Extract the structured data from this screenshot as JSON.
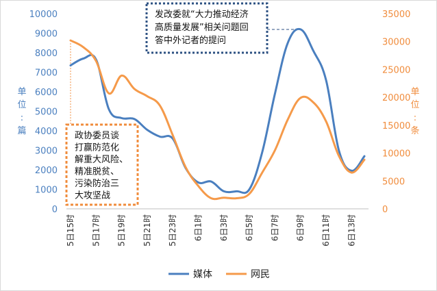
{
  "chart_data": {
    "type": "line",
    "x": [
      "5日15时",
      "5日16时",
      "5日17时",
      "5日18时",
      "5日19时",
      "5日20时",
      "5日21时",
      "5日22时",
      "5日23时",
      "6日0时",
      "6日1时",
      "6日2时",
      "6日3时",
      "6日4时",
      "6日5时",
      "6日6时",
      "6日7时",
      "6日8时",
      "6日9时",
      "6日10时",
      "6日11时",
      "6日12时",
      "6日13时",
      "6日14时"
    ],
    "x_tick_labels": [
      "5日15时",
      "5日17时",
      "5日19时",
      "5日21时",
      "5日23时",
      "6日1时",
      "6日3时",
      "6日5时",
      "6日7时",
      "6日9时",
      "6日11时",
      "6日13时"
    ],
    "series": [
      {
        "name": "媒体",
        "axis": "left",
        "color": "#4a7fbf",
        "values": [
          7350,
          7700,
          7650,
          5100,
          4650,
          4600,
          4050,
          3700,
          3600,
          2100,
          1350,
          1400,
          900,
          900,
          1000,
          2900,
          5900,
          8500,
          9200,
          8100,
          6600,
          3000,
          1950,
          2700
        ]
      },
      {
        "name": "网民",
        "axis": "right",
        "color": "#f59a4a",
        "values": [
          30200,
          29000,
          26500,
          20700,
          23900,
          21500,
          20200,
          18500,
          13200,
          7500,
          4100,
          1900,
          2000,
          1900,
          2700,
          6500,
          10500,
          16000,
          19900,
          19100,
          15700,
          9500,
          6500,
          8800
        ]
      }
    ],
    "y_left": {
      "label": [
        "单",
        "位",
        ":",
        "篇"
      ],
      "ticks": [
        0,
        1000,
        2000,
        3000,
        4000,
        5000,
        6000,
        7000,
        8000,
        9000,
        10000
      ],
      "ylim": [
        0,
        10000
      ]
    },
    "y_right": {
      "label": [
        "单",
        "位",
        ":",
        "条"
      ],
      "ticks": [
        0,
        5000,
        10000,
        15000,
        20000,
        25000,
        30000,
        35000
      ],
      "ylim": [
        0,
        35000
      ]
    },
    "annotations": [
      {
        "lines": [
          "发改委就“大力推动经济",
          "高质量发展”相关问题回",
          "答中外记者的提问"
        ],
        "color": "#2e5283",
        "point_index": 18,
        "series": "媒体"
      },
      {
        "lines": [
          "政协委员谈",
          "打赢防范化",
          "解重大风险、",
          "精准脱贫、",
          "污染防治三",
          "大攻坚战"
        ],
        "color": "#f08c3c",
        "point_index": 0,
        "series": "网民"
      }
    ],
    "legend_position": "bottom"
  }
}
